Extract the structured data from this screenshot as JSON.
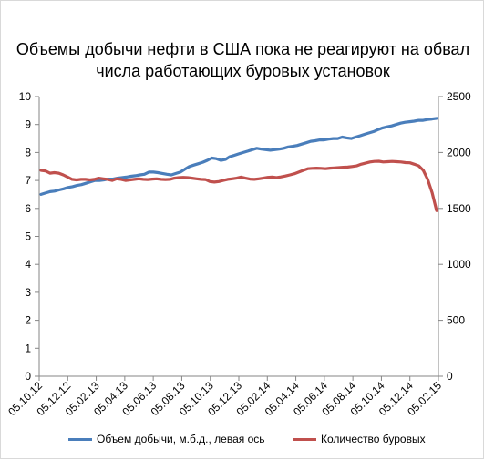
{
  "chart_data": {
    "type": "line",
    "title_line1": "Объемы добычи нефти в США пока не реагируют на обвал",
    "title_line2": "числа работающих буровых установок",
    "x_labels": [
      "05.10.12",
      "05.12.12",
      "05.02.13",
      "05.04.13",
      "05.06.13",
      "05.08.13",
      "05.10.13",
      "05.12.13",
      "05.02.14",
      "05.04.14",
      "05.06.14",
      "05.08.14",
      "05.10.14",
      "05.12.14",
      "05.02.15"
    ],
    "y_left_ticks": [
      "0",
      "1",
      "2",
      "3",
      "4",
      "5",
      "6",
      "7",
      "8",
      "9",
      "10"
    ],
    "y_right_ticks": [
      "0",
      "500",
      "1000",
      "1500",
      "2000",
      "2500"
    ],
    "ylim_left": [
      0,
      10
    ],
    "ylim_right": [
      0,
      2500
    ],
    "series": [
      {
        "name": "Объем добычи, м.б.д., левая ось",
        "axis": "left",
        "color": "#4a7ebb",
        "values": [
          6.5,
          6.55,
          6.6,
          6.62,
          6.66,
          6.7,
          6.75,
          6.78,
          6.82,
          6.85,
          6.9,
          6.95,
          7.0,
          7.0,
          7.02,
          7.05,
          7.05,
          7.08,
          7.1,
          7.12,
          7.15,
          7.17,
          7.2,
          7.22,
          7.3,
          7.3,
          7.28,
          7.25,
          7.22,
          7.2,
          7.25,
          7.3,
          7.4,
          7.5,
          7.55,
          7.6,
          7.65,
          7.72,
          7.8,
          7.78,
          7.72,
          7.75,
          7.85,
          7.9,
          7.95,
          8.0,
          8.05,
          8.1,
          8.15,
          8.12,
          8.1,
          8.08,
          8.1,
          8.12,
          8.15,
          8.2,
          8.22,
          8.25,
          8.3,
          8.35,
          8.4,
          8.42,
          8.45,
          8.45,
          8.48,
          8.5,
          8.5,
          8.55,
          8.52,
          8.5,
          8.55,
          8.6,
          8.65,
          8.7,
          8.75,
          8.82,
          8.88,
          8.92,
          8.95,
          9.0,
          9.05,
          9.08,
          9.1,
          9.12,
          9.15,
          9.15,
          9.18,
          9.2,
          9.22
        ]
      },
      {
        "name": "Количество буровых",
        "axis": "right",
        "color": "#c0504d",
        "values": [
          1840,
          1835,
          1815,
          1820,
          1815,
          1800,
          1780,
          1760,
          1755,
          1760,
          1760,
          1755,
          1760,
          1770,
          1765,
          1760,
          1750,
          1765,
          1760,
          1750,
          1755,
          1760,
          1765,
          1760,
          1758,
          1762,
          1765,
          1760,
          1758,
          1760,
          1770,
          1775,
          1778,
          1775,
          1770,
          1765,
          1760,
          1758,
          1740,
          1735,
          1740,
          1750,
          1760,
          1765,
          1770,
          1780,
          1770,
          1762,
          1760,
          1765,
          1770,
          1778,
          1780,
          1775,
          1782,
          1790,
          1800,
          1810,
          1825,
          1840,
          1855,
          1858,
          1860,
          1858,
          1855,
          1860,
          1862,
          1865,
          1868,
          1870,
          1875,
          1880,
          1895,
          1905,
          1915,
          1920,
          1922,
          1915,
          1918,
          1920,
          1918,
          1915,
          1910,
          1908,
          1895,
          1880,
          1840,
          1760,
          1640,
          1480
        ]
      }
    ],
    "legend_position": "bottom",
    "grid": false
  }
}
